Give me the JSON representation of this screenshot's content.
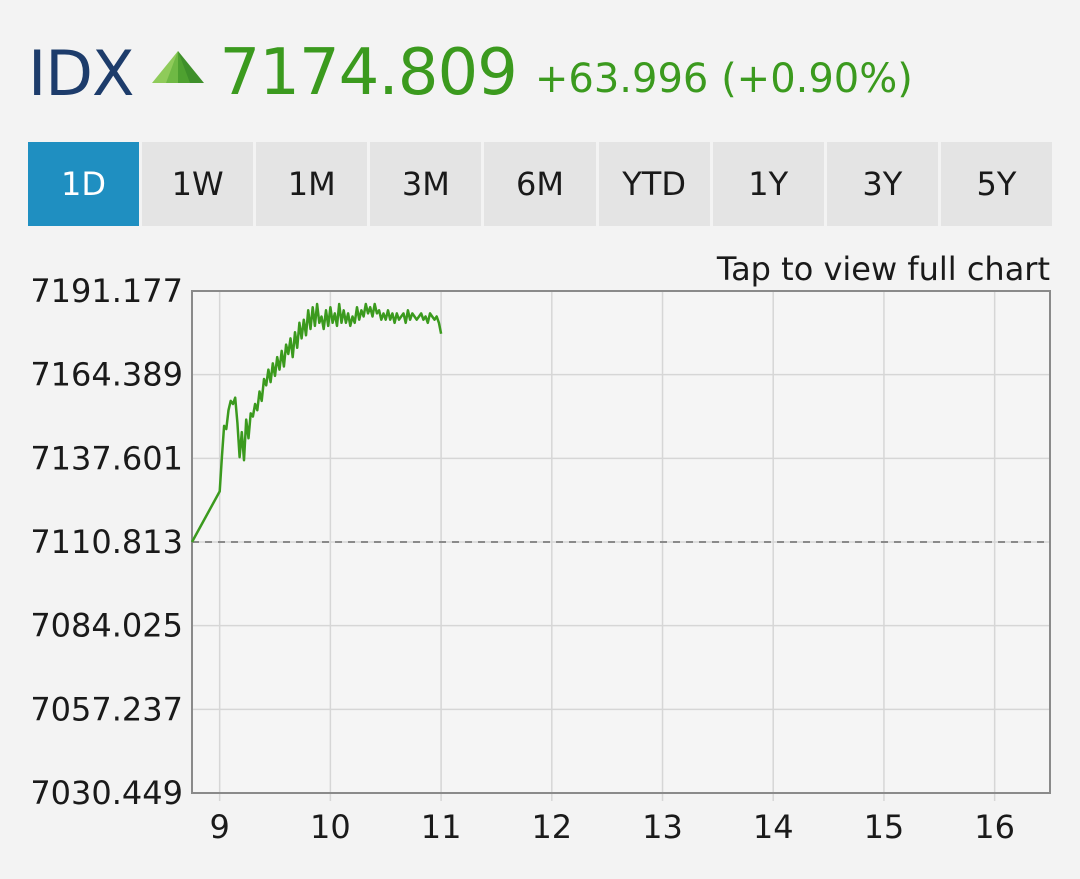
{
  "quote": {
    "symbol": "IDX",
    "direction_icon": "triangle-up-icon",
    "price": "7174.809",
    "change": "+63.996 (+0.90%)",
    "color_up": "#3b9a1e",
    "color_symbol": "#1d3c6b"
  },
  "ranges": {
    "tabs": [
      {
        "label": "1D",
        "active": true
      },
      {
        "label": "1W",
        "active": false
      },
      {
        "label": "1M",
        "active": false
      },
      {
        "label": "3M",
        "active": false
      },
      {
        "label": "6M",
        "active": false
      },
      {
        "label": "YTD",
        "active": false
      },
      {
        "label": "1Y",
        "active": false
      },
      {
        "label": "3Y",
        "active": false
      },
      {
        "label": "5Y",
        "active": false
      }
    ],
    "active_color": "#1f8fc1"
  },
  "chart_hint": "Tap to view full chart",
  "chart_data": {
    "type": "line",
    "title": "",
    "xlabel": "",
    "ylabel": "",
    "x_ticks": [
      "9",
      "10",
      "11",
      "12",
      "13",
      "14",
      "15",
      "16"
    ],
    "y_ticks": [
      "7191.177",
      "7164.389",
      "7137.601",
      "7110.813",
      "7084.025",
      "7057.237",
      "7030.449"
    ],
    "xlim": [
      8.75,
      16.5
    ],
    "ylim": [
      7030.449,
      7191.177
    ],
    "previous_close": 7110.813,
    "grid": true,
    "line_color": "#3b9a1e",
    "series": [
      {
        "x": [
          8.75,
          9.0,
          9.02,
          9.04,
          9.06,
          9.08,
          9.1,
          9.12,
          9.14,
          9.16,
          9.18,
          9.2,
          9.22,
          9.24,
          9.26,
          9.28,
          9.3,
          9.32,
          9.34,
          9.36,
          9.38,
          9.4,
          9.42,
          9.44,
          9.46,
          9.48,
          9.5,
          9.52,
          9.54,
          9.56,
          9.58,
          9.6,
          9.62,
          9.64,
          9.66,
          9.68,
          9.7,
          9.72,
          9.74,
          9.76,
          9.78,
          9.8,
          9.82,
          9.84,
          9.86,
          9.88,
          9.9,
          9.92,
          9.94,
          9.96,
          9.98,
          10.0,
          10.02,
          10.04,
          10.06,
          10.08,
          10.1,
          10.12,
          10.14,
          10.16,
          10.18,
          10.2,
          10.22,
          10.24,
          10.26,
          10.28,
          10.3,
          10.32,
          10.34,
          10.36,
          10.38,
          10.4,
          10.42,
          10.44,
          10.46,
          10.48,
          10.5,
          10.52,
          10.54,
          10.56,
          10.58,
          10.6,
          10.62,
          10.64,
          10.66,
          10.68,
          10.7,
          10.72,
          10.74,
          10.76,
          10.78,
          10.8,
          10.82,
          10.84,
          10.86,
          10.88,
          10.9,
          10.92,
          10.94,
          10.96,
          10.98,
          11.0
        ],
        "y": [
          7110.8,
          7127.0,
          7138.0,
          7148.0,
          7147.0,
          7153.0,
          7156.0,
          7155.0,
          7157.0,
          7149.0,
          7138.0,
          7146.0,
          7137.0,
          7150.0,
          7144.0,
          7152.0,
          7151.0,
          7155.0,
          7153.0,
          7159.0,
          7156.0,
          7163.0,
          7161.0,
          7166.0,
          7162.0,
          7168.0,
          7164.0,
          7170.0,
          7166.0,
          7172.0,
          7167.0,
          7174.0,
          7171.0,
          7176.0,
          7170.0,
          7178.0,
          7173.0,
          7181.0,
          7176.0,
          7182.0,
          7177.0,
          7185.0,
          7179.0,
          7186.0,
          7180.0,
          7187.0,
          7181.0,
          7183.0,
          7179.0,
          7185.0,
          7180.0,
          7186.0,
          7181.0,
          7184.0,
          7180.0,
          7187.0,
          7181.0,
          7185.0,
          7181.0,
          7184.0,
          7180.0,
          7183.0,
          7181.0,
          7186.0,
          7182.0,
          7185.0,
          7183.0,
          7187.0,
          7184.0,
          7186.0,
          7183.0,
          7187.0,
          7184.0,
          7185.0,
          7182.0,
          7184.0,
          7182.0,
          7185.0,
          7182.0,
          7184.0,
          7181.0,
          7184.0,
          7182.0,
          7183.0,
          7184.0,
          7181.0,
          7185.0,
          7182.0,
          7184.0,
          7183.0,
          7182.0,
          7183.0,
          7184.0,
          7182.0,
          7183.0,
          7181.0,
          7184.0,
          7183.0,
          7182.0,
          7183.0,
          7181.0,
          7177.5
        ]
      }
    ]
  }
}
